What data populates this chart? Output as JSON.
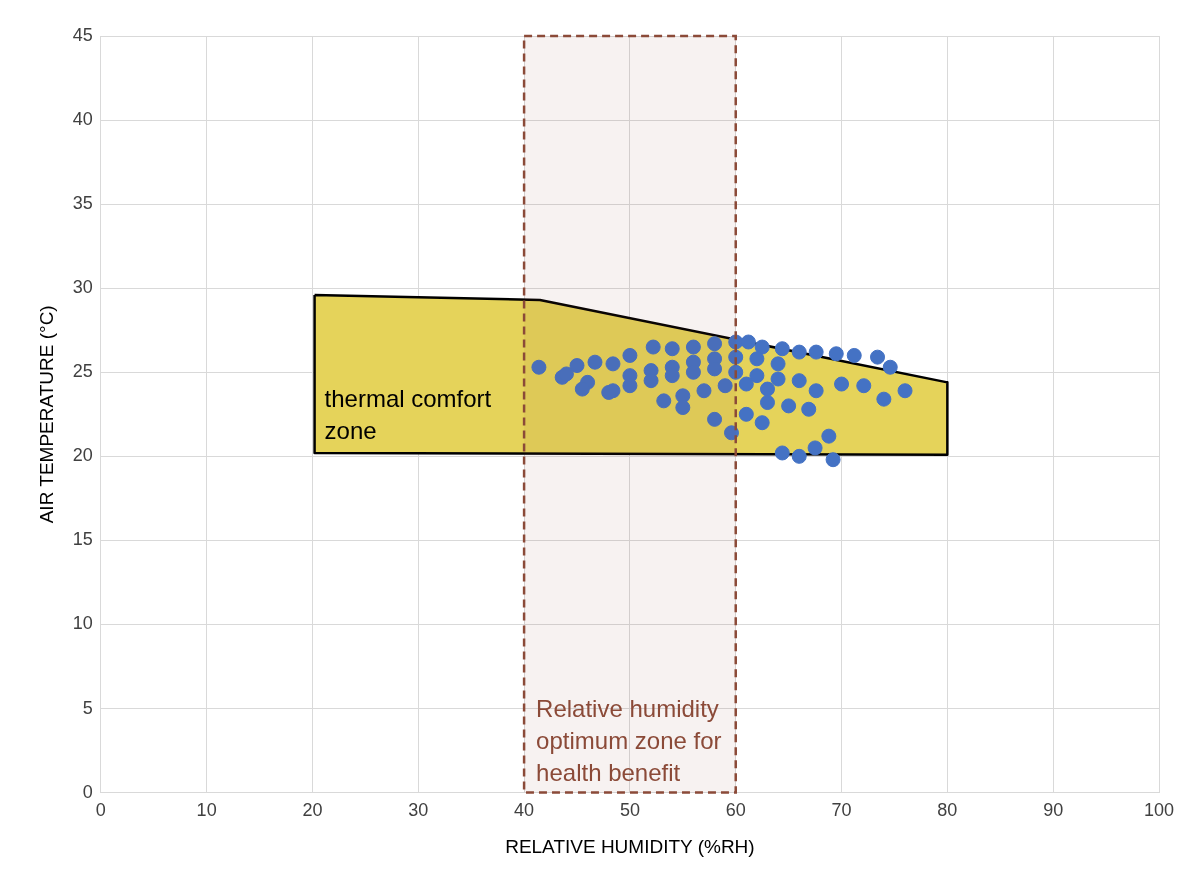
{
  "chart_data": {
    "type": "scatter",
    "xlabel": "RELATIVE HUMIDITY (%RH)",
    "ylabel": "AIR TEMPERATURE (°C)",
    "xlim": [
      0,
      100
    ],
    "xticks": [
      0,
      10,
      20,
      30,
      40,
      50,
      60,
      70,
      80,
      90,
      100
    ],
    "ylim": [
      0,
      45
    ],
    "yticks": [
      0,
      5,
      10,
      15,
      20,
      25,
      30,
      35,
      40,
      45
    ],
    "grid": true,
    "legend": false,
    "bands": [
      {
        "axis": "x",
        "from": 40,
        "to": 60,
        "label": "Relative humidity optimum zone for health benefit",
        "color": "#8b4a38"
      }
    ],
    "series": [
      {
        "type": "area",
        "name": "thermal comfort zone",
        "color": "#e5d35a",
        "x": [
          20.2,
          41.5,
          80,
          80,
          20.2,
          20.2
        ],
        "values": [
          29.6,
          29.3,
          24.4,
          20.1,
          20.2,
          29.6
        ]
      },
      {
        "color": "#4472c4",
        "x": [
          41.4,
          43.6,
          45,
          46.7,
          48.4,
          50,
          52.2,
          54,
          56,
          58,
          60,
          61.2,
          62.5,
          64.4,
          66,
          67.6,
          69.5,
          71.2,
          73.4,
          74.6,
          76,
          74,
          72.1,
          70,
          67.6,
          66,
          64,
          62,
          60,
          58,
          56,
          54,
          52,
          50,
          48.4,
          46,
          44,
          45.5,
          48,
          50,
          52,
          54,
          56,
          58,
          60,
          62,
          64,
          55,
          57,
          59,
          61,
          63,
          53.2,
          55,
          58,
          59.6,
          61,
          62.5,
          64.4,
          66,
          67.5,
          69.2,
          68.8,
          66.9,
          65,
          63
        ],
        "values": [
          25.3,
          24.7,
          25.4,
          25.6,
          25.5,
          26,
          26.5,
          26.4,
          26.5,
          26.7,
          26.8,
          26.8,
          26.5,
          26.4,
          26.2,
          26.2,
          26.1,
          26,
          25.9,
          25.3,
          23.9,
          23.4,
          24.2,
          24.3,
          23.9,
          24.5,
          25.5,
          25.8,
          25.9,
          25.8,
          25.6,
          25.3,
          25.1,
          24.8,
          23.9,
          24.4,
          24.9,
          24,
          23.8,
          24.2,
          24.5,
          24.8,
          25,
          25.2,
          25,
          24.8,
          24.6,
          23.6,
          23.9,
          24.2,
          24.3,
          24,
          23.3,
          22.9,
          22.2,
          21.4,
          22.5,
          22,
          20.2,
          20,
          20.5,
          19.8,
          21.2,
          22.8,
          23,
          23.2
        ]
      }
    ]
  }
}
